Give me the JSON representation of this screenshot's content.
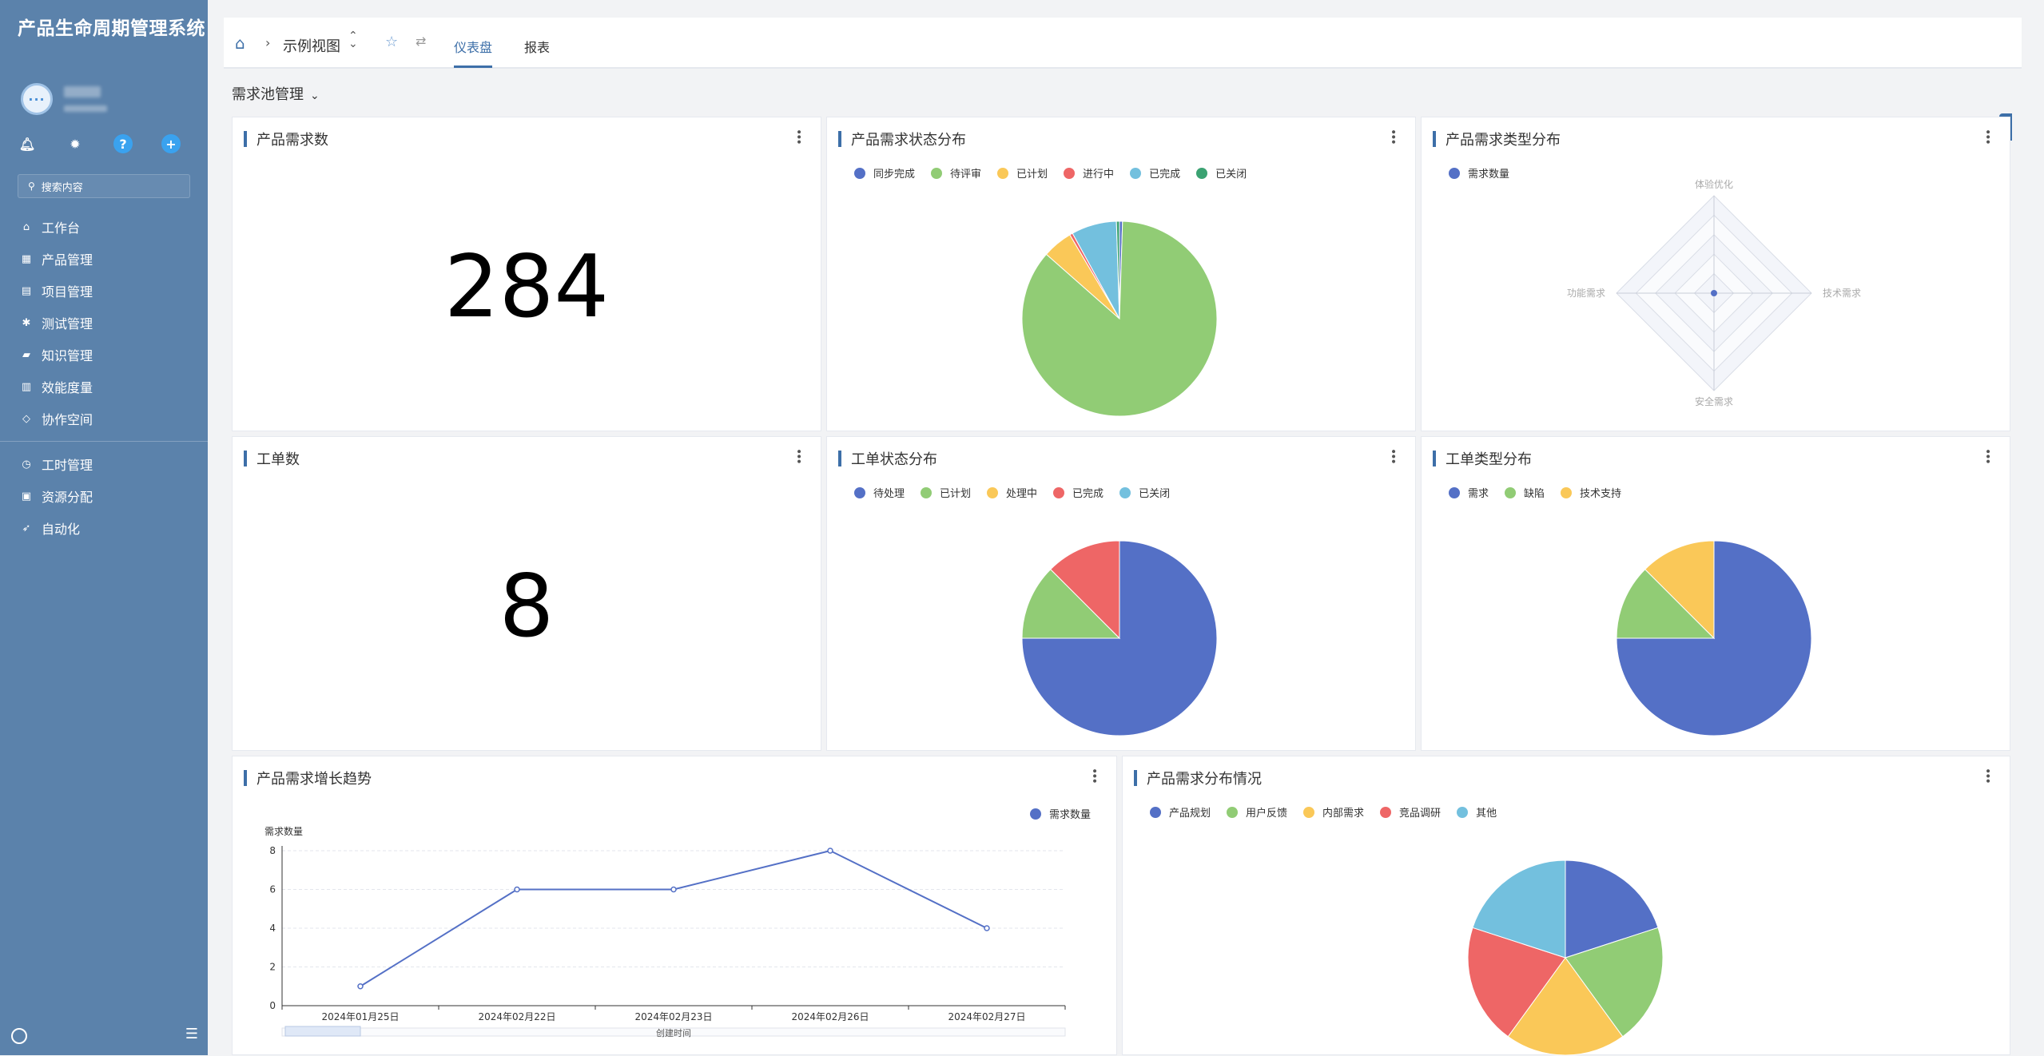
{
  "sidebar": {
    "title": "产品生命周期管理系统",
    "avatar_text": "···",
    "search_placeholder": "搜索内容",
    "menu": [
      {
        "label": "工作台",
        "icon": "home-icon",
        "glyph": "⌂"
      },
      {
        "label": "产品管理",
        "icon": "grid-icon",
        "glyph": "▦"
      },
      {
        "label": "项目管理",
        "icon": "document-icon",
        "glyph": "▤"
      },
      {
        "label": "测试管理",
        "icon": "bug-icon",
        "glyph": "✱"
      },
      {
        "label": "知识管理",
        "icon": "book-icon",
        "glyph": "▰"
      },
      {
        "label": "效能度量",
        "icon": "bar-chart-icon",
        "glyph": "▥"
      },
      {
        "label": "协作空间",
        "icon": "diamond-icon",
        "glyph": "◇"
      }
    ],
    "menu2": [
      {
        "label": "工时管理",
        "icon": "clock-icon",
        "glyph": "◷"
      },
      {
        "label": "资源分配",
        "icon": "resource-icon",
        "glyph": "▣"
      },
      {
        "label": "自动化",
        "icon": "rocket-icon",
        "glyph": "➶"
      }
    ]
  },
  "topbar": {
    "view_name": "示例视图",
    "tabs": [
      "仪表盘",
      "报表"
    ]
  },
  "section": {
    "title": "需求池管理"
  },
  "cards": {
    "req_count": {
      "title": "产品需求数",
      "value": "284"
    },
    "req_status": {
      "title": "产品需求状态分布"
    },
    "req_type": {
      "title": "产品需求类型分布"
    },
    "ticket_count": {
      "title": "工单数",
      "value": "8"
    },
    "ticket_status": {
      "title": "工单状态分布"
    },
    "ticket_type": {
      "title": "工单类型分布"
    },
    "req_trend": {
      "title": "产品需求增长趋势"
    },
    "req_dist": {
      "title": "产品需求分布情况"
    }
  },
  "colors": {
    "blue": "#5470c6",
    "green": "#91cc75",
    "yellow": "#fac858",
    "red": "#ee6666",
    "cyan": "#73c0de",
    "teal": "#3ba272",
    "accent": "#3d6fa8",
    "sidebar": "#5b82ab"
  },
  "chart_data": [
    {
      "id": "req_status",
      "type": "pie",
      "series": [
        {
          "name": "同步完成",
          "value": 0.5,
          "color": "#5470c6"
        },
        {
          "name": "待评审",
          "value": 86,
          "color": "#91cc75"
        },
        {
          "name": "已计划",
          "value": 5,
          "color": "#fac858"
        },
        {
          "name": "进行中",
          "value": 0.5,
          "color": "#ee6666"
        },
        {
          "name": "已完成",
          "value": 7.5,
          "color": "#73c0de"
        },
        {
          "name": "已关闭",
          "value": 0.5,
          "color": "#3ba272"
        }
      ]
    },
    {
      "id": "req_type",
      "type": "radar",
      "legend": [
        "需求数量"
      ],
      "indicators": [
        "体验优化",
        "技术需求",
        "安全需求",
        "功能需求"
      ],
      "values": [
        0,
        0,
        0,
        0
      ]
    },
    {
      "id": "ticket_status",
      "type": "pie",
      "series": [
        {
          "name": "待处理",
          "value": 75,
          "color": "#5470c6"
        },
        {
          "name": "已计划",
          "value": 12.5,
          "color": "#91cc75"
        },
        {
          "name": "处理中",
          "value": 0,
          "color": "#fac858"
        },
        {
          "name": "已完成",
          "value": 12.5,
          "color": "#ee6666"
        },
        {
          "name": "已关闭",
          "value": 0,
          "color": "#73c0de"
        }
      ]
    },
    {
      "id": "ticket_type",
      "type": "pie",
      "series": [
        {
          "name": "需求",
          "value": 75,
          "color": "#5470c6"
        },
        {
          "name": "缺陷",
          "value": 12.5,
          "color": "#91cc75"
        },
        {
          "name": "技术支持",
          "value": 12.5,
          "color": "#fac858"
        }
      ]
    },
    {
      "id": "req_trend",
      "type": "line",
      "legend": [
        "需求数量"
      ],
      "ylabel": "需求数量",
      "xlabel": "创建时间",
      "x": [
        "2024年01月25日",
        "2024年02月22日",
        "2024年02月23日",
        "2024年02月26日",
        "2024年02月27日"
      ],
      "values": [
        1,
        6,
        6,
        8,
        4
      ],
      "ylim": [
        0,
        8
      ],
      "yticks": [
        0,
        2,
        4,
        6,
        8
      ]
    },
    {
      "id": "req_dist",
      "type": "pie",
      "series": [
        {
          "name": "产品规划",
          "value": 20,
          "color": "#5470c6"
        },
        {
          "name": "用户反馈",
          "value": 20,
          "color": "#91cc75"
        },
        {
          "name": "内部需求",
          "value": 20,
          "color": "#fac858"
        },
        {
          "name": "竞品调研",
          "value": 20,
          "color": "#ee6666"
        },
        {
          "name": "其他",
          "value": 20,
          "color": "#73c0de"
        }
      ]
    }
  ]
}
